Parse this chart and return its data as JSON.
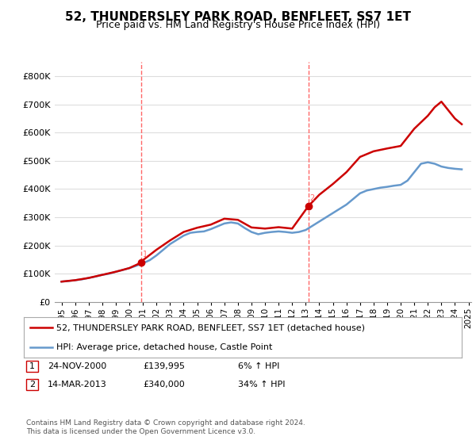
{
  "title": "52, THUNDERSLEY PARK ROAD, BENFLEET, SS7 1ET",
  "subtitle": "Price paid vs. HM Land Registry's House Price Index (HPI)",
  "legend_line1": "52, THUNDERSLEY PARK ROAD, BENFLEET, SS7 1ET (detached house)",
  "legend_line2": "HPI: Average price, detached house, Castle Point",
  "table_row1": [
    "1",
    "24-NOV-2000",
    "£139,995",
    "6% ↑ HPI"
  ],
  "table_row2": [
    "2",
    "14-MAR-2013",
    "£340,000",
    "34% ↑ HPI"
  ],
  "footer": "Contains HM Land Registry data © Crown copyright and database right 2024.\nThis data is licensed under the Open Government Licence v3.0.",
  "sale_color": "#cc0000",
  "hpi_color": "#6699cc",
  "vline_color": "#ff6666",
  "background_color": "#ffffff",
  "grid_color": "#dddddd",
  "ylim": [
    0,
    850000
  ],
  "yticks": [
    0,
    100000,
    200000,
    300000,
    400000,
    500000,
    600000,
    700000,
    800000
  ],
  "sale_dates": [
    2000.9,
    2013.2
  ],
  "sale_prices": [
    139995,
    340000
  ],
  "hpi_years": [
    1995.0,
    1995.5,
    1996.0,
    1996.5,
    1997.0,
    1997.5,
    1998.0,
    1998.5,
    1999.0,
    1999.5,
    2000.0,
    2000.5,
    2001.0,
    2001.5,
    2002.0,
    2002.5,
    2003.0,
    2003.5,
    2004.0,
    2004.5,
    2005.0,
    2005.5,
    2006.0,
    2006.5,
    2007.0,
    2007.5,
    2008.0,
    2008.5,
    2009.0,
    2009.5,
    2010.0,
    2010.5,
    2011.0,
    2011.5,
    2012.0,
    2012.5,
    2013.0,
    2013.5,
    2014.0,
    2014.5,
    2015.0,
    2015.5,
    2016.0,
    2016.5,
    2017.0,
    2017.5,
    2018.0,
    2018.5,
    2019.0,
    2019.5,
    2020.0,
    2020.5,
    2021.0,
    2021.5,
    2022.0,
    2022.5,
    2023.0,
    2023.5,
    2024.0,
    2024.5
  ],
  "hpi_values": [
    72000,
    74000,
    77000,
    80000,
    85000,
    90000,
    96000,
    100000,
    107000,
    113000,
    120000,
    128000,
    137000,
    148000,
    165000,
    185000,
    205000,
    220000,
    235000,
    245000,
    248000,
    250000,
    258000,
    268000,
    278000,
    282000,
    278000,
    262000,
    248000,
    240000,
    245000,
    248000,
    250000,
    248000,
    245000,
    248000,
    255000,
    270000,
    285000,
    300000,
    315000,
    330000,
    345000,
    365000,
    385000,
    395000,
    400000,
    405000,
    408000,
    412000,
    415000,
    430000,
    460000,
    490000,
    495000,
    490000,
    480000,
    475000,
    472000,
    470000
  ],
  "prop_years": [
    1995.0,
    1996.0,
    1997.0,
    1998.0,
    1999.0,
    2000.0,
    2000.9,
    2001.0,
    2002.0,
    2003.0,
    2004.0,
    2005.0,
    2006.0,
    2007.0,
    2008.0,
    2009.0,
    2010.0,
    2011.0,
    2012.0,
    2013.2,
    2014.0,
    2015.0,
    2016.0,
    2017.0,
    2018.0,
    2019.0,
    2020.0,
    2021.0,
    2022.0,
    2022.5,
    2023.0,
    2023.5,
    2024.0,
    2024.5
  ],
  "prop_values": [
    72000,
    77000,
    85000,
    96000,
    107000,
    120000,
    139995,
    148000,
    185000,
    218000,
    248000,
    263000,
    274000,
    295000,
    291000,
    264000,
    260000,
    265000,
    260000,
    340000,
    380000,
    418000,
    460000,
    514000,
    534000,
    544000,
    553000,
    614000,
    660000,
    690000,
    710000,
    680000,
    650000,
    630000
  ],
  "x_tick_labels": [
    "1995",
    "1996",
    "1997",
    "1998",
    "1999",
    "2000",
    "2001",
    "2002",
    "2003",
    "2004",
    "2005",
    "2006",
    "2007",
    "2008",
    "2009",
    "2010",
    "2011",
    "2012",
    "2013",
    "2014",
    "2015",
    "2016",
    "2017",
    "2018",
    "2019",
    "2020",
    "2021",
    "2022",
    "2023",
    "2024",
    "2025"
  ],
  "x_tick_positions": [
    1995,
    1996,
    1997,
    1998,
    1999,
    2000,
    2001,
    2002,
    2003,
    2004,
    2005,
    2006,
    2007,
    2008,
    2009,
    2010,
    2011,
    2012,
    2013,
    2014,
    2015,
    2016,
    2017,
    2018,
    2019,
    2020,
    2021,
    2022,
    2023,
    2024,
    2025
  ],
  "xlim": [
    1994.5,
    2025.2
  ]
}
